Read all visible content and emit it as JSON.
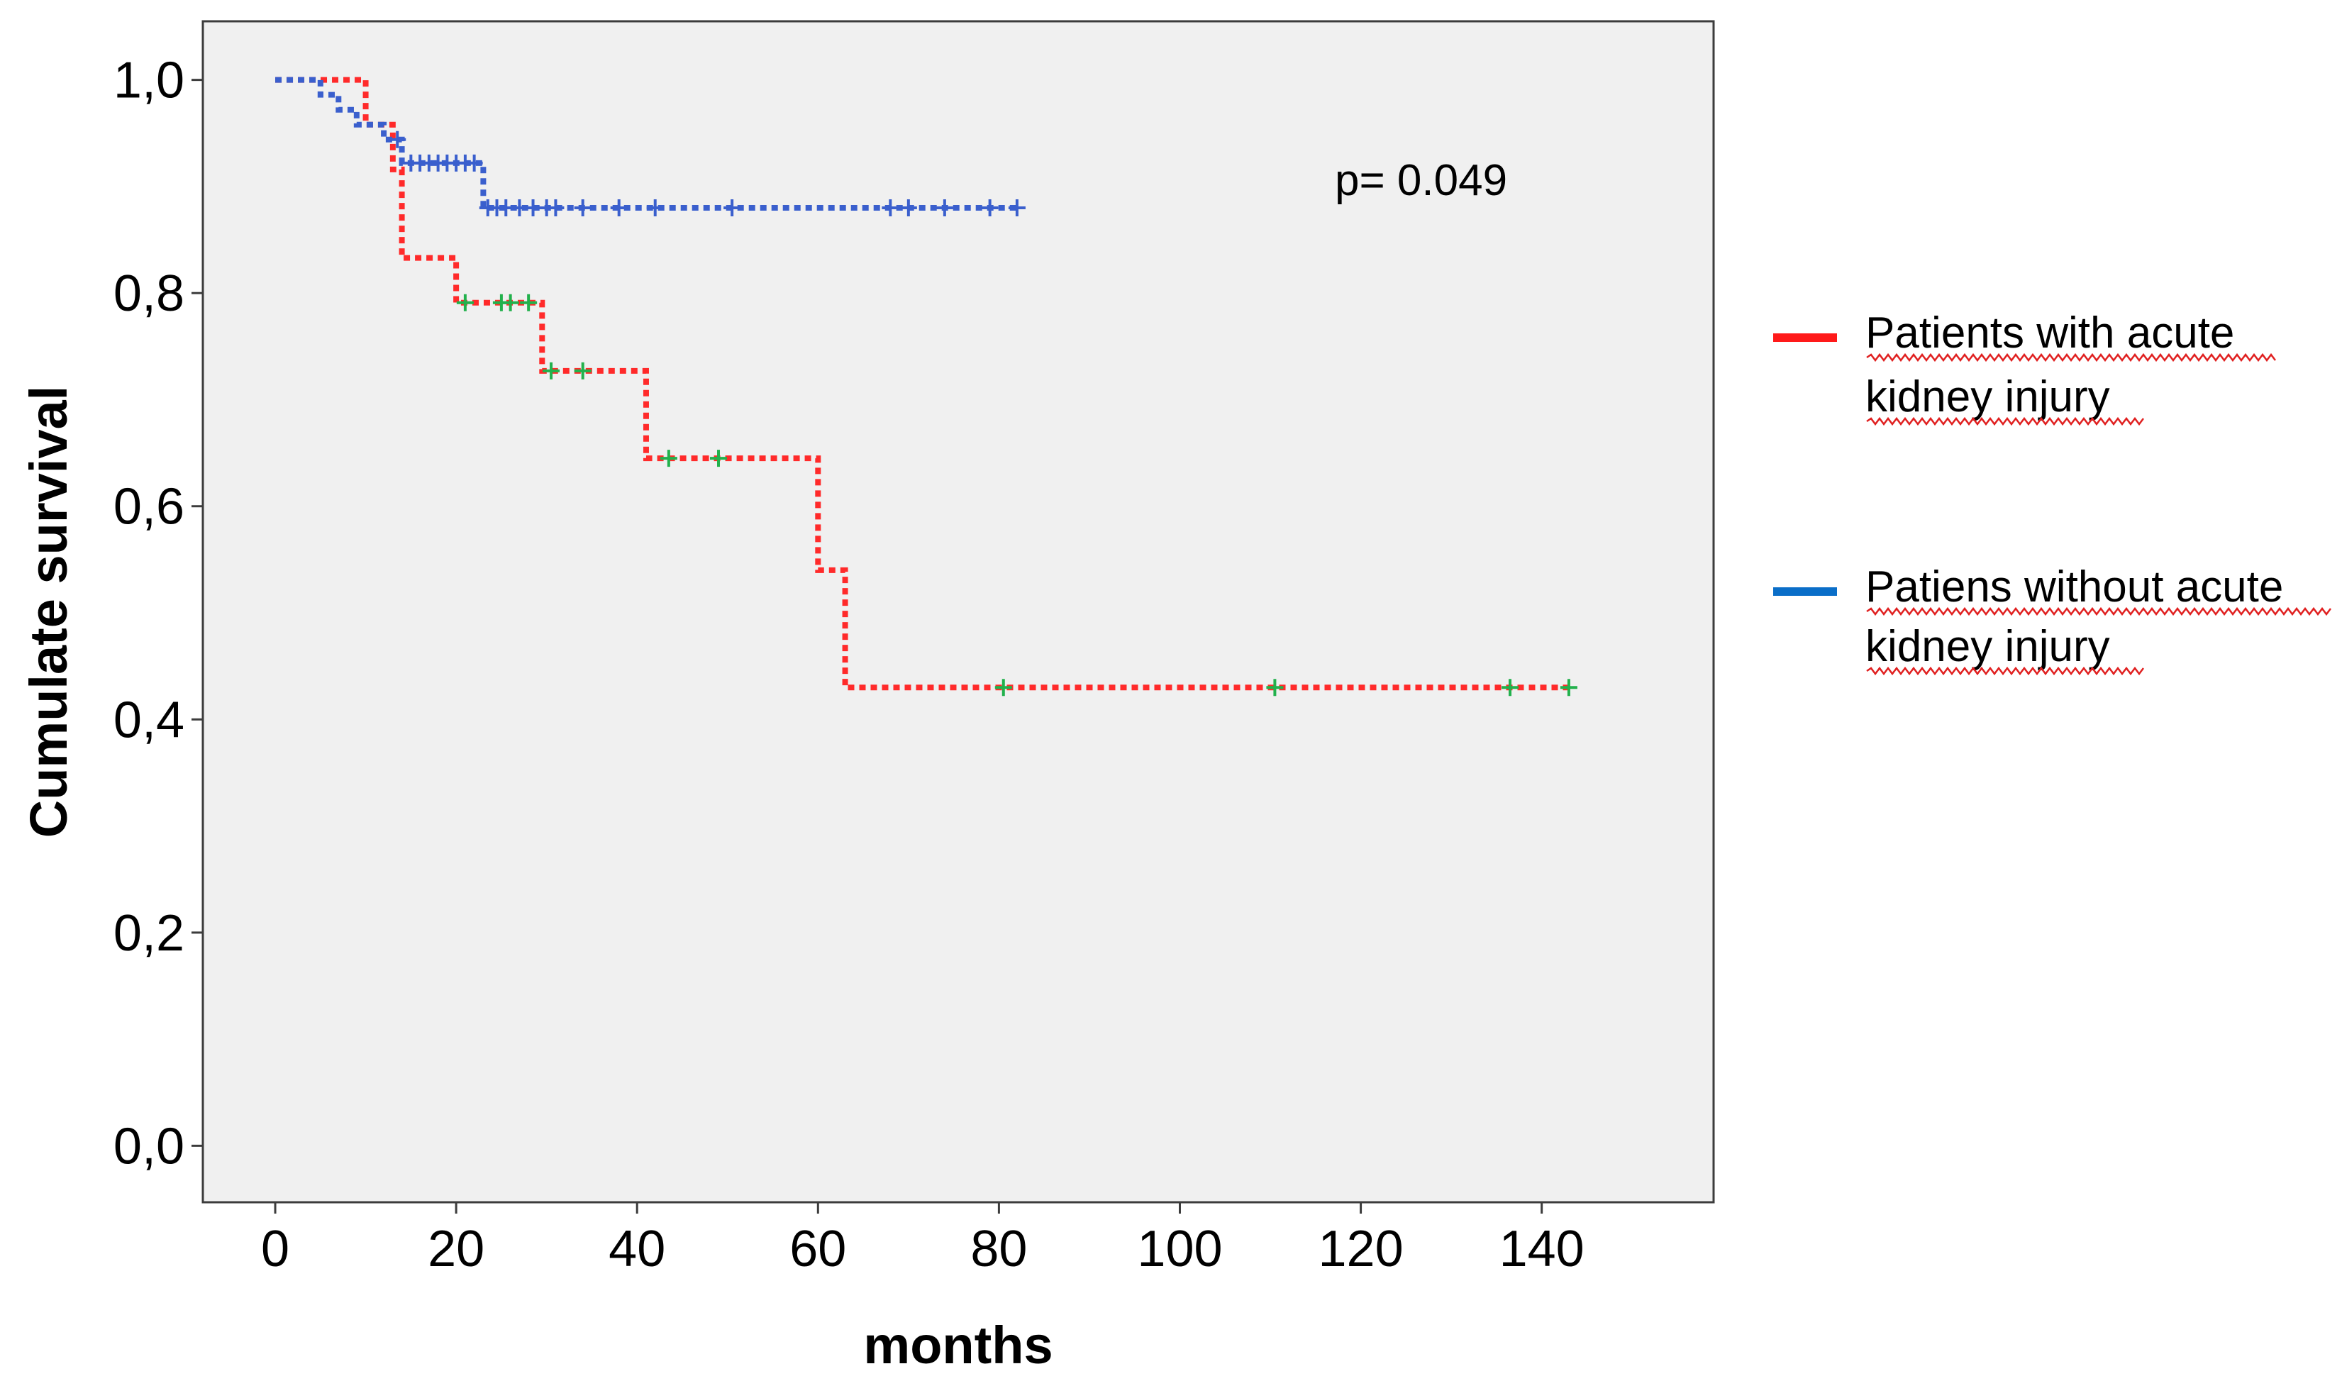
{
  "chart_data": {
    "type": "line",
    "subtype": "kaplan-meier",
    "title": "",
    "xlabel": "months",
    "ylabel": "Cumulate survival",
    "xlim": [
      -8,
      159
    ],
    "ylim": [
      -0.053,
      1.055
    ],
    "x_ticks": [
      0,
      20,
      40,
      60,
      80,
      100,
      120,
      140
    ],
    "x_tick_labels": [
      "0",
      "20",
      "40",
      "60",
      "80",
      "100",
      "120",
      "140"
    ],
    "y_ticks": [
      0.0,
      0.2,
      0.4,
      0.6,
      0.8,
      1.0
    ],
    "y_tick_labels": [
      "0,0",
      "0,2",
      "0,4",
      "0,6",
      "0,8",
      "1,0"
    ],
    "grid": false,
    "legend_position": "right",
    "annotation": "p= 0.049",
    "series": [
      {
        "name": "Patients with acute kidney injury",
        "legend_lines": [
          "Patients with acute",
          "kidney injury"
        ],
        "color": "#ff2a2a",
        "censor_color": "#22b14c",
        "steps": [
          [
            0,
            1.0
          ],
          [
            10,
            0.958
          ],
          [
            13,
            0.916
          ],
          [
            14,
            0.833
          ],
          [
            20,
            0.791
          ],
          [
            29.5,
            0.727
          ],
          [
            41,
            0.645
          ],
          [
            60,
            0.54
          ],
          [
            63,
            0.43
          ],
          [
            143,
            0.43
          ]
        ],
        "censored": [
          [
            21,
            0.791
          ],
          [
            25,
            0.791
          ],
          [
            26,
            0.791
          ],
          [
            28,
            0.791
          ],
          [
            30.5,
            0.727
          ],
          [
            34,
            0.727
          ],
          [
            43.5,
            0.645
          ],
          [
            49,
            0.645
          ],
          [
            80.5,
            0.43
          ],
          [
            110.5,
            0.43
          ],
          [
            136.5,
            0.43
          ],
          [
            143,
            0.43
          ]
        ]
      },
      {
        "name": "Patiens without acute kidney injury",
        "legend_lines": [
          "Patiens without acute",
          "kidney injury"
        ],
        "color": "#3a5fcd",
        "censor_color": "#3a5fcd",
        "steps": [
          [
            0,
            1.0
          ],
          [
            5,
            0.986
          ],
          [
            7,
            0.972
          ],
          [
            9,
            0.958
          ],
          [
            12,
            0.944
          ],
          [
            14,
            0.922
          ],
          [
            23,
            0.88
          ],
          [
            82,
            0.88
          ]
        ],
        "censored": [
          [
            13.5,
            0.944
          ],
          [
            15,
            0.922
          ],
          [
            16,
            0.922
          ],
          [
            17,
            0.922
          ],
          [
            18,
            0.922
          ],
          [
            19,
            0.922
          ],
          [
            20,
            0.922
          ],
          [
            21,
            0.922
          ],
          [
            22,
            0.922
          ],
          [
            23.5,
            0.88
          ],
          [
            24.5,
            0.88
          ],
          [
            25.5,
            0.88
          ],
          [
            27,
            0.88
          ],
          [
            28.5,
            0.88
          ],
          [
            30,
            0.88
          ],
          [
            31,
            0.88
          ],
          [
            34,
            0.88
          ],
          [
            38,
            0.88
          ],
          [
            42,
            0.88
          ],
          [
            50.5,
            0.88
          ],
          [
            68,
            0.88
          ],
          [
            70,
            0.88
          ],
          [
            74,
            0.88
          ],
          [
            79,
            0.88
          ],
          [
            82,
            0.88
          ]
        ]
      }
    ]
  }
}
